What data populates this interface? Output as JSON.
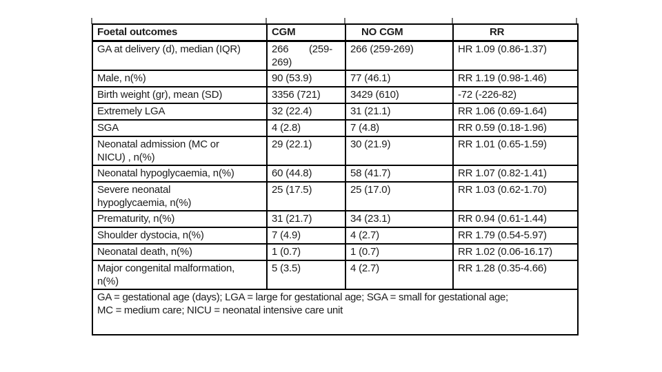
{
  "table": {
    "header": {
      "outcome": "Foetal outcomes",
      "cgm": "CGM",
      "no_cgm": "NO CGM",
      "rr": "RR"
    },
    "rows": [
      {
        "outcome": "GA at delivery (d), median (IQR)",
        "cgm": "266 (259-269)",
        "no_cgm": "266 (259-269)",
        "rr": "HR 1.09 (0.86-1.37)"
      },
      {
        "outcome": "Male, n(%)",
        "cgm": "90 (53.9)",
        "no_cgm": "77 (46.1)",
        "rr": "RR 1.19 (0.98-1.46)"
      },
      {
        "outcome": "Birth weight (gr), mean (SD)",
        "cgm": "3356 (721)",
        "no_cgm": "3429 (610)",
        "rr": "-72 (-226-82)"
      },
      {
        "outcome": "Extremely LGA",
        "cgm": "32 (22.4)",
        "no_cgm": "31 (21.1)",
        "rr": "RR 1.06 (0.69-1.64)"
      },
      {
        "outcome": "SGA",
        "cgm": "4 (2.8)",
        "no_cgm": "7 (4.8)",
        "rr": "RR 0.59 (0.18-1.96)"
      },
      {
        "outcome": "Neonatal admission (MC or\nNICU) , n(%)",
        "cgm": "29 (22.1)",
        "no_cgm": "30 (21.9)",
        "rr": "RR 1.01 (0.65-1.59)"
      },
      {
        "outcome": "Neonatal hypoglycaemia, n(%)",
        "cgm": "60 (44.8)",
        "no_cgm": "58 (41.7)",
        "rr": "RR 1.07 (0.82-1.41)"
      },
      {
        "outcome": "Severe neonatal\nhypoglycaemia, n(%)",
        "cgm": "25 (17.5)",
        "no_cgm": "25 (17.0)",
        "rr": "RR 1.03 (0.62-1.70)"
      },
      {
        "outcome": "Prematurity, n(%)",
        "cgm": "31 (21.7)",
        "no_cgm": "34 (23.1)",
        "rr": "RR 0.94 (0.61-1.44)"
      },
      {
        "outcome": "Shoulder dystocia, n(%)",
        "cgm": "7 (4.9)",
        "no_cgm": "4 (2.7)",
        "rr": "RR 1.79 (0.54-5.97)"
      },
      {
        "outcome": "Neonatal death, n(%)",
        "cgm": "1 (0.7)",
        "no_cgm": "1 (0.7)",
        "rr": "RR 1.02 (0.06-16.17)"
      },
      {
        "outcome": "Major congenital malformation,\nn(%)",
        "cgm": "5 (3.5)",
        "no_cgm": "4 (2.7)",
        "rr": "RR 1.28 (0.35-4.66)"
      }
    ],
    "footnote": "GA = gestational age (days); LGA = large for gestational age; SGA = small for gestational age;\nMC = medium care; NICU = neonatal intensive care unit"
  },
  "colors": {
    "border": "#000000",
    "text": "#1b1b1b",
    "background": "#ffffff"
  }
}
